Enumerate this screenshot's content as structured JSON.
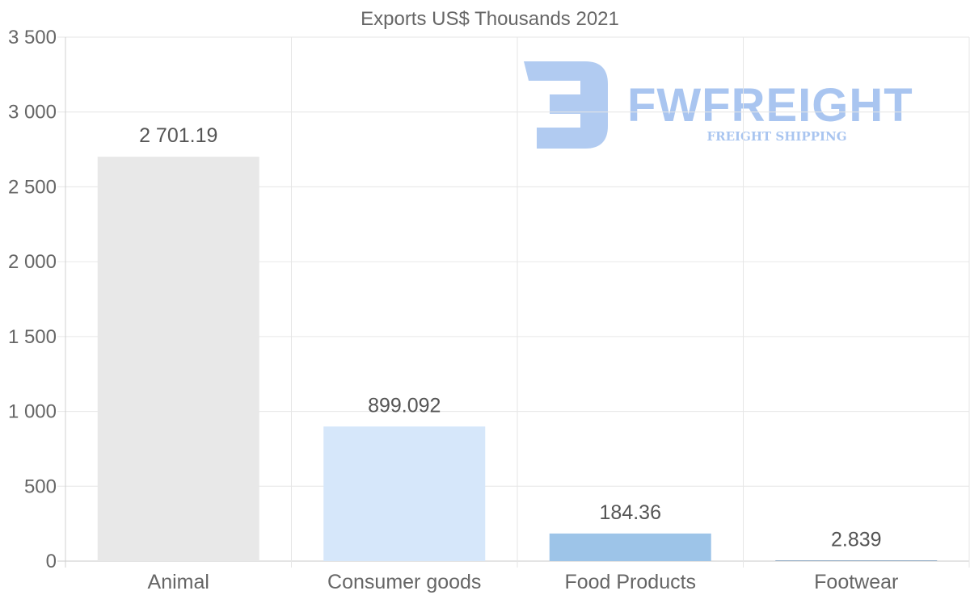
{
  "chart_data": {
    "type": "bar",
    "title": "Exports US$ Thousands 2021",
    "categories": [
      "Animal",
      "Consumer goods",
      "Food Products",
      "Footwear"
    ],
    "values": [
      2701.19,
      899.092,
      184.36,
      2.839
    ],
    "value_labels": [
      "2 701.19",
      "899.092",
      "184.36",
      "2.839"
    ],
    "bar_colors": [
      "#e8e8e8",
      "#d6e7fa",
      "#9dc4e8",
      "#2f5f8f"
    ],
    "yticks": [
      0,
      500,
      1000,
      1500,
      2000,
      2500,
      3000,
      3500
    ],
    "ytick_labels": [
      "0",
      "500",
      "1 000",
      "1 500",
      "2 000",
      "2 500",
      "3 000",
      "3 500"
    ],
    "ylim": [
      0,
      3500
    ],
    "xlabel": "",
    "ylabel": "",
    "grid": true
  },
  "watermark": {
    "brand": "FWFREIGHT",
    "tagline": "FREIGHT SHIPPING",
    "color": "#a9c5f0"
  }
}
